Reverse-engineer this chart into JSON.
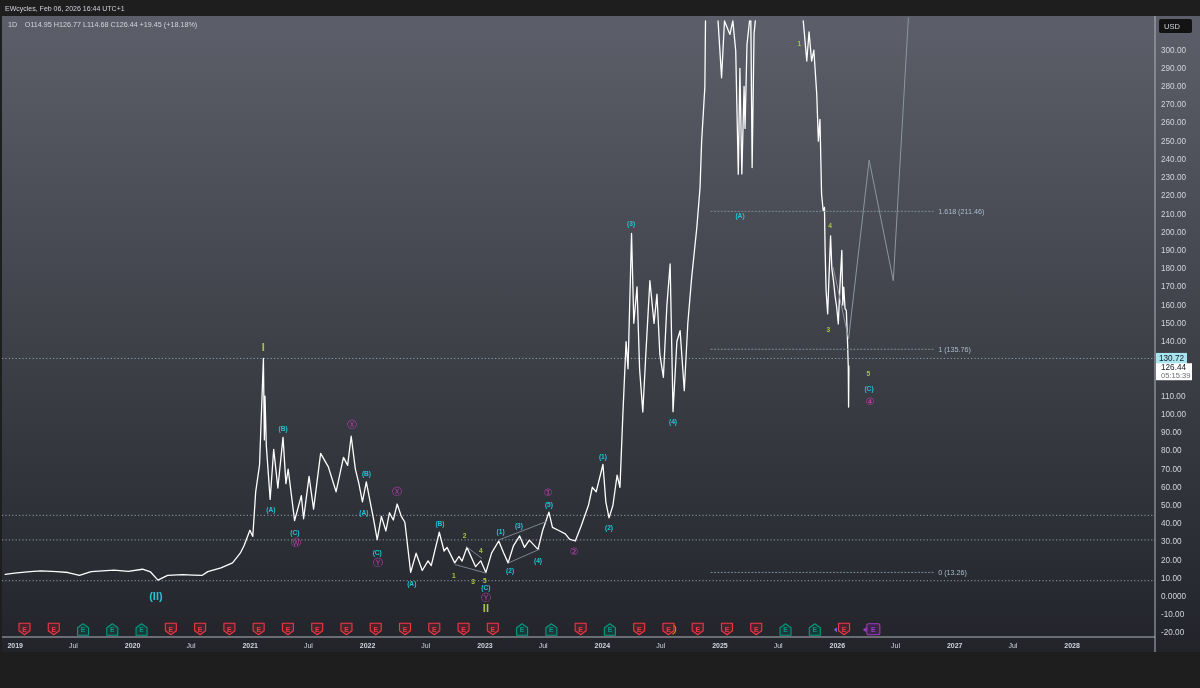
{
  "chart_data": {
    "type": "line",
    "title": "1D",
    "subtitle": "O114.95 H126.77 L114.68 C126.44 +19.45 (+18.18%)",
    "ylabel": "USD",
    "xlim": [
      "2018-11-21",
      "2028-09-15"
    ],
    "ylim": [
      -22.2,
      318.7
    ],
    "xticks": [
      {
        "value": "2019-01-01",
        "label": "2019"
      },
      {
        "value": "2019-07-01",
        "label": "Jul"
      },
      {
        "value": "2020-01-01",
        "label": "2020"
      },
      {
        "value": "2020-07-01",
        "label": "Jul"
      },
      {
        "value": "2021-01-01",
        "label": "2021"
      },
      {
        "value": "2021-07-01",
        "label": "Jul"
      },
      {
        "value": "2022-01-01",
        "label": "2022"
      },
      {
        "value": "2022-07-01",
        "label": "Jul"
      },
      {
        "value": "2023-01-01",
        "label": "2023"
      },
      {
        "value": "2023-07-01",
        "label": "Jul"
      },
      {
        "value": "2024-01-01",
        "label": "2024"
      },
      {
        "value": "2024-07-01",
        "label": "Jul"
      },
      {
        "value": "2025-01-01",
        "label": "2025"
      },
      {
        "value": "2025-07-01",
        "label": "Jul"
      },
      {
        "value": "2026-01-01",
        "label": "2026"
      },
      {
        "value": "2026-07-01",
        "label": "Jul"
      },
      {
        "value": "2027-01-01",
        "label": "2027"
      },
      {
        "value": "2027-07-01",
        "label": "Jul"
      },
      {
        "value": "2028-01-01",
        "label": "2028"
      }
    ],
    "yticks": [
      {
        "value": -20,
        "label": "-20.00"
      },
      {
        "value": -10,
        "label": "-10.00"
      },
      {
        "value": 0,
        "label": "0.0000"
      },
      {
        "value": 10,
        "label": "10.00"
      },
      {
        "value": 20,
        "label": "20.00"
      },
      {
        "value": 30,
        "label": "30.00"
      },
      {
        "value": 40,
        "label": "40.00"
      },
      {
        "value": 50,
        "label": "50.00"
      },
      {
        "value": 60,
        "label": "60.00"
      },
      {
        "value": 70,
        "label": "70.00"
      },
      {
        "value": 80,
        "label": "80.00"
      },
      {
        "value": 90,
        "label": "90.00"
      },
      {
        "value": 100,
        "label": "100.00"
      },
      {
        "value": 110,
        "label": "110.00"
      },
      {
        "value": 140,
        "label": "140.00"
      },
      {
        "value": 150,
        "label": "150.00"
      },
      {
        "value": 160,
        "label": "160.00"
      },
      {
        "value": 170,
        "label": "170.00"
      },
      {
        "value": 180,
        "label": "180.00"
      },
      {
        "value": 190,
        "label": "190.00"
      },
      {
        "value": 200,
        "label": "200.00"
      },
      {
        "value": 210,
        "label": "210.00"
      },
      {
        "value": 220,
        "label": "220.00"
      },
      {
        "value": 230,
        "label": "230.00"
      },
      {
        "value": 240,
        "label": "240.00"
      },
      {
        "value": 250,
        "label": "250.00"
      },
      {
        "value": 260,
        "label": "260.00"
      },
      {
        "value": 270,
        "label": "270.00"
      },
      {
        "value": 280,
        "label": "280.00"
      },
      {
        "value": 290,
        "label": "290.00"
      },
      {
        "value": 300,
        "label": "300.00"
      }
    ],
    "series": [
      {
        "color": "#ffffff",
        "x": [
          "2018-12-01",
          "2018-12-30",
          "2019-02-16",
          "2019-03-23",
          "2019-05-10",
          "2019-06-14",
          "2019-07-20",
          "2019-08-25",
          "2019-11-04",
          "2019-12-19",
          "2020-02-01",
          "2020-02-26",
          "2020-03-20",
          "2020-04-19",
          "2020-06-05",
          "2020-07-08",
          "2020-08-04",
          "2020-08-22",
          "2020-10-02",
          "2020-11-07",
          "2020-12-01",
          "2020-12-13",
          "2020-12-31",
          "2021-01-09",
          "2021-01-18",
          "2021-01-30",
          "2021-02-11",
          "2021-02-14",
          "2021-02-16",
          "2021-02-20",
          "2021-03-04",
          "2021-03-15",
          "2021-03-28",
          "2021-04-13",
          "2021-04-22",
          "2021-04-29",
          "2021-05-19",
          "2021-06-09",
          "2021-06-16",
          "2021-07-03",
          "2021-07-17",
          "2021-08-08",
          "2021-09-01",
          "2021-09-25",
          "2021-10-18",
          "2021-10-31",
          "2021-11-11",
          "2021-11-24",
          "2021-12-05",
          "2021-12-16",
          "2021-12-28",
          "2022-01-19",
          "2022-01-31",
          "2022-02-13",
          "2022-02-27",
          "2022-03-10",
          "2022-03-22",
          "2022-04-03",
          "2022-04-16",
          "2022-04-27",
          "2022-05-15",
          "2022-06-01",
          "2022-06-20",
          "2022-07-08",
          "2022-07-18",
          "2022-08-12",
          "2022-08-27",
          "2022-09-05",
          "2022-09-29",
          "2022-10-12",
          "2022-10-22",
          "2022-11-06",
          "2022-12-03",
          "2022-12-19",
          "2023-01-04",
          "2023-01-22",
          "2023-02-13",
          "2023-02-28",
          "2023-03-14",
          "2023-03-31",
          "2023-04-19",
          "2023-05-04",
          "2023-05-19",
          "2023-06-15",
          "2023-06-29",
          "2023-07-19",
          "2023-07-30",
          "2023-08-17",
          "2023-09-08",
          "2023-09-21",
          "2023-10-09",
          "2023-10-27",
          "2023-11-19",
          "2023-12-01",
          "2023-12-13",
          "2024-01-03",
          "2024-01-12",
          "2024-01-22",
          "2024-02-03",
          "2024-02-16",
          "2024-02-25",
          "2024-03-05",
          "2024-03-15",
          "2024-03-21",
          "2024-04-01",
          "2024-04-08",
          "2024-04-18",
          "2024-04-26",
          "2024-05-06",
          "2024-05-16",
          "2024-05-28",
          "2024-06-10",
          "2024-06-19",
          "2024-06-28",
          "2024-07-09",
          "2024-07-20",
          "2024-07-30",
          "2024-08-08",
          "2024-08-20",
          "2024-08-30",
          "2024-09-12",
          "2024-09-23",
          "2024-10-05",
          "2024-10-21",
          "2024-10-31",
          "2024-11-05",
          "2024-11-15",
          "2024-11-17",
          "2024-12-01",
          "2024-12-26",
          "2025-01-06",
          "2025-01-15",
          "2025-02-01",
          "2025-02-10",
          "2025-02-19",
          "2025-02-27",
          "2025-03-04",
          "2025-03-10",
          "2025-03-17",
          "2025-03-20",
          "2025-03-26",
          "2025-04-03",
          "2025-04-05",
          "2025-04-07",
          "2025-04-11",
          "2025-04-17",
          "2025-04-21",
          "2025-06-01",
          "2025-09-17",
          "2025-09-28",
          "2025-10-05",
          "2025-10-13",
          "2025-10-20",
          "2025-10-29",
          "2025-11-03",
          "2025-11-08",
          "2025-11-13",
          "2025-11-18",
          "2025-11-22",
          "2025-11-24",
          "2025-11-27",
          "2025-12-02",
          "2025-12-06",
          "2025-12-11",
          "2025-12-15",
          "2025-12-20",
          "2025-12-25",
          "2025-12-30",
          "2026-01-04",
          "2026-01-09",
          "2026-01-15",
          "2026-01-18",
          "2026-01-21",
          "2026-01-25",
          "2026-01-29",
          "2026-02-02",
          "2026-02-04",
          "2026-02-05",
          "2026-02-06"
        ],
        "values": [
          12.2,
          12.9,
          13.7,
          14.1,
          13.7,
          13.2,
          11.6,
          13.7,
          14.5,
          13.8,
          15.0,
          13.5,
          9.0,
          11.6,
          12.0,
          11.8,
          11.6,
          13.7,
          15.8,
          18.5,
          23.8,
          28,
          36.4,
          33,
          57.5,
          72.3,
          130.72,
          86,
          110,
          83,
          53.3,
          80.8,
          59.6,
          87.4,
          62,
          70,
          41.7,
          55.4,
          42.7,
          66,
          48,
          78.6,
          71.2,
          57.5,
          76.4,
          72,
          88.0,
          70,
          62,
          52,
          63,
          43,
          31.2,
          44,
          36,
          46,
          42,
          50.8,
          44,
          40.8,
          13.3,
          23.8,
          14.3,
          19.6,
          17,
          35.3,
          25,
          27,
          18.5,
          22,
          19.5,
          27,
          16.4,
          19.6,
          13.26,
          24,
          30.5,
          24,
          18.5,
          28,
          33.3,
          27,
          31,
          25.9,
          36,
          46.3,
          38,
          36.4,
          34.4,
          31.5,
          30.5,
          38.6,
          50.1,
          60,
          57.5,
          72.5,
          52,
          43.2,
          50,
          66.6,
          60,
          100,
          140,
          125,
          199.3,
          150,
          170,
          125,
          101.3,
          135,
          173.4,
          150,
          166,
          133,
          120.4,
          160,
          182.6,
          101.5,
          140,
          146,
          113,
          150,
          175.2,
          202.6,
          224.5,
          250,
          279.7,
          316,
          null,
          316,
          284.8,
          316,
          308.6,
          316,
          299.5,
          231.9,
          290,
          232,
          280,
          257,
          303,
          316,
          null,
          316,
          235.5,
          309,
          316,
          null,
          316,
          294,
          310,
          294,
          300,
          275.7,
          250,
          262,
          221,
          211.8,
          213.6,
          190,
          168,
          155.2,
          175,
          198,
          180,
          173.4,
          165,
          158.8,
          149.7,
          170,
          190,
          160,
          169.8,
          158,
          157,
          138.7,
          125.9,
          104,
          126.44
        ]
      },
      {
        "color": "#8c96a0",
        "x": [
          "2025-12-19",
          "2026-02-05",
          "2026-04-10",
          "2026-06-24",
          "2026-08-10"
        ],
        "values": [
          180.7,
          141.5,
          239.6,
          173.4,
          317.7
        ]
      },
      {
        "name": "1.618 (211.46)",
        "color": "#7b8a99",
        "line_style": "dotted",
        "x": [
          "2024-12-04",
          "2026-10-26"
        ],
        "values": [
          211.46,
          211.46
        ]
      },
      {
        "name": "1 (135.76)",
        "color": "#7b8a99",
        "line_style": "dotted",
        "x": [
          "2024-12-04",
          "2026-10-26"
        ],
        "values": [
          135.76,
          135.76
        ]
      },
      {
        "name": "0 (13.26)",
        "color": "#7b8a99",
        "line_style": "dotted",
        "x": [
          "2024-12-04",
          "2026-10-26"
        ],
        "values": [
          13.26,
          13.26
        ]
      },
      {
        "color": "#7b8590",
        "x": [
          "2023-02-15",
          "2023-07-13"
        ],
        "values": [
          31.2,
          41.3
        ]
      },
      {
        "color": "#7b8590",
        "x": [
          "2023-03-17",
          "2023-06-20"
        ],
        "values": [
          18.6,
          26
        ]
      },
      {
        "color": "#7b8590",
        "x": [
          "2022-10-01",
          "2023-01-04"
        ],
        "values": [
          17.5,
          12.9
        ]
      },
      {
        "color": "#7b8590",
        "x": [
          "2022-11-05",
          "2022-12-22"
        ],
        "values": [
          27.3,
          21.0
        ]
      }
    ],
    "ref_lines": [
      {
        "axis": "y",
        "value": 130.72,
        "label": "130.72",
        "color": "#8fa0b0",
        "line_style": "dotted"
      },
      {
        "axis": "y",
        "value": 44.6,
        "color": "#8fa0b0",
        "line_style": "dotted"
      },
      {
        "axis": "y",
        "value": 31.1,
        "color": "#8fa0b0",
        "line_style": "dotted"
      },
      {
        "axis": "y",
        "value": 8.7,
        "color": "#8fa0b0",
        "line_style": "dotted"
      }
    ],
    "annotations": [
      "EWcycles, Feb 06, 2026 16:44 UTC+1",
      "E",
      "E",
      "E",
      "E",
      "E",
      "E",
      "E",
      "E",
      "E",
      "E",
      "E",
      "E",
      "E",
      "E",
      "E",
      "E",
      "E",
      "E",
      "E",
      "E",
      "E",
      "E",
      "E",
      "E",
      "E",
      "E",
      "E",
      "E",
      "E",
      "E",
      "126.44",
      "05:15:39",
      "(A)",
      "5",
      "(C)",
      {
        "text": "I",
        "x": "2021-02-11",
        "y": 130.72
      },
      {
        "text": "(II)",
        "x": "2020-03-20",
        "y": 9.0
      },
      {
        "text": "(A)",
        "x": "2021-03-04",
        "y": 53.3
      },
      {
        "text": "(B)",
        "x": "2021-04-13",
        "y": 87.4
      },
      {
        "text": "(C)",
        "x": "2021-05-19",
        "y": 41.7
      },
      {
        "text": "Ⓦ",
        "x": "2021-05-19",
        "y": 41.7
      },
      {
        "text": "Ⓧ",
        "x": "2021-11-11",
        "y": 88.0
      },
      {
        "text": "(A)",
        "x": "2021-12-16",
        "y": 52
      },
      {
        "text": "(B)",
        "x": "2021-12-28",
        "y": 63
      },
      {
        "text": "(C)",
        "x": "2022-01-31",
        "y": 31.2
      },
      {
        "text": "Ⓨ",
        "x": "2022-01-31",
        "y": 31.2
      },
      {
        "text": "Ⓧ",
        "x": "2022-04-03",
        "y": 50.8
      },
      {
        "text": "(A)",
        "x": "2022-05-15",
        "y": 13.3
      },
      {
        "text": "(B)",
        "x": "2022-08-12",
        "y": 35.3
      },
      {
        "text": "1",
        "x": "2022-09-29",
        "y": 18.5
      },
      {
        "text": "2",
        "x": "2022-11-06",
        "y": 27
      },
      {
        "text": "3",
        "x": "2022-12-03",
        "y": 16.4
      },
      {
        "text": "4",
        "x": "2022-12-19",
        "y": 19.6
      },
      {
        "text": "5",
        "x": "2023-01-04",
        "y": 13.26
      },
      {
        "text": "(C)",
        "x": "2023-01-04",
        "y": 13.26
      },
      {
        "text": "Ⓨ",
        "x": "2023-01-04",
        "y": 13.26
      },
      {
        "text": "II",
        "x": "2023-01-04",
        "y": 13.26
      },
      {
        "text": "(1)",
        "x": "2023-02-13",
        "y": 30.5
      },
      {
        "text": "(2)",
        "x": "2023-03-14",
        "y": 18.5
      },
      {
        "text": "(3)",
        "x": "2023-04-19",
        "y": 33.3
      },
      {
        "text": "(4)",
        "x": "2023-06-15",
        "y": 25.9
      },
      {
        "text": "①",
        "x": "2023-07-19",
        "y": 46.3
      },
      {
        "text": "(5)",
        "x": "2023-07-19",
        "y": 46.3
      },
      {
        "text": "②",
        "x": "2023-10-09",
        "y": 30.5
      },
      {
        "text": "(1)",
        "x": "2024-01-03",
        "y": 72.5
      },
      {
        "text": "(2)",
        "x": "2024-01-22",
        "y": 43.2
      },
      {
        "text": "(3)",
        "x": "2024-04-01",
        "y": 199.3
      },
      {
        "text": "(4)",
        "x": "2024-08-08",
        "y": 101.5
      },
      {
        "text": "1",
        "x": "2025-09-28",
        "y": 294
      },
      {
        "text": "4",
        "x": "2025-12-11",
        "y": 198
      },
      {
        "text": "3",
        "x": "2025-12-02",
        "y": 155.2
      },
      {
        "text": "④",
        "x": "2026-02-05",
        "y": 104
      }
    ]
  }
}
